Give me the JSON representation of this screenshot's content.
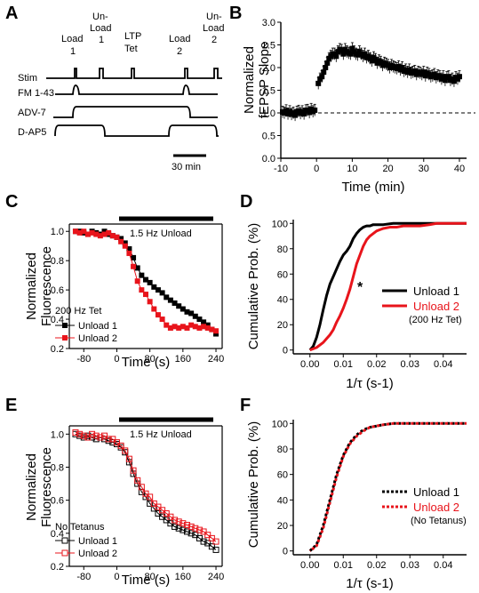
{
  "chart_data": [
    {
      "panel": "A",
      "type": "timeline",
      "events": [
        "Load 1",
        "Un-Load 1",
        "LTP Tet",
        "Load 2",
        "Un-Load 2"
      ],
      "rows": [
        "Stim",
        "FM 1-43",
        "ADV-7",
        "D-AP5"
      ],
      "scalebar_label": "30 min"
    },
    {
      "panel": "B",
      "type": "scatter",
      "xlabel": "Time (min)",
      "ylabel": [
        "Normalized",
        "fEPSP Slope"
      ],
      "xlim": [
        -10,
        42
      ],
      "ylim": [
        0,
        3
      ],
      "xticks": [
        -10,
        0,
        10,
        20,
        30,
        40
      ],
      "yticks": [
        0.0,
        0.5,
        1.0,
        1.5,
        2.0,
        2.5,
        3.0
      ],
      "baseline": 1.0,
      "x": [
        -9.5,
        -9,
        -8.5,
        -8,
        -7.5,
        -7,
        -6.5,
        -6,
        -5.5,
        -5,
        -4.5,
        -4,
        -3.5,
        -3,
        -2.5,
        -2,
        -1.5,
        -1,
        -0.5,
        0.5,
        1,
        1.5,
        2,
        2.5,
        3,
        3.5,
        4,
        4.5,
        5,
        5.5,
        6,
        6.5,
        7,
        7.5,
        8,
        8.5,
        9,
        9.5,
        10,
        10.5,
        11,
        11.5,
        12,
        12.5,
        13,
        13.5,
        14,
        14.5,
        15,
        15.5,
        16,
        16.5,
        17,
        17.5,
        18,
        18.5,
        19,
        19.5,
        20,
        20.5,
        21,
        21.5,
        22,
        22.5,
        23,
        23.5,
        24,
        24.5,
        25,
        25.5,
        26,
        26.5,
        27,
        27.5,
        28,
        28.5,
        29,
        29.5,
        30,
        30.5,
        31,
        31.5,
        32,
        32.5,
        33,
        33.5,
        34,
        34.5,
        35,
        35.5,
        36,
        36.5,
        37,
        37.5,
        38,
        38.5,
        39,
        39.5,
        40
      ],
      "y": [
        1.02,
        1.0,
        1.05,
        0.98,
        1.03,
        0.97,
        1.0,
        0.95,
        1.02,
        1.04,
        0.99,
        1.03,
        0.98,
        1.05,
        1.06,
        1.01,
        1.08,
        1.03,
        1.06,
        1.65,
        1.75,
        1.8,
        1.9,
        2.0,
        2.1,
        2.2,
        2.25,
        2.3,
        2.3,
        2.25,
        2.35,
        2.4,
        2.38,
        2.3,
        2.4,
        2.35,
        2.32,
        2.3,
        2.42,
        2.35,
        2.3,
        2.28,
        2.35,
        2.3,
        2.25,
        2.3,
        2.22,
        2.25,
        2.2,
        2.15,
        2.22,
        2.18,
        2.1,
        2.15,
        2.12,
        2.05,
        2.1,
        2.08,
        2.05,
        2.0,
        2.05,
        2.02,
        2.0,
        1.98,
        2.02,
        1.95,
        2.0,
        1.92,
        1.95,
        1.9,
        1.95,
        1.88,
        1.9,
        1.92,
        1.85,
        1.9,
        1.88,
        1.85,
        1.9,
        1.82,
        1.88,
        1.85,
        1.8,
        1.82,
        1.85,
        1.78,
        1.82,
        1.8,
        1.75,
        1.8,
        1.72,
        1.78,
        1.8,
        1.72,
        1.75,
        1.7,
        1.78,
        1.75,
        1.8
      ],
      "err": 0.13
    },
    {
      "panel": "C",
      "type": "line",
      "xlabel": "Time (s)",
      "ylabel": [
        "Normalized",
        "Fluorescence"
      ],
      "xlim": [
        -115,
        255
      ],
      "ylim": [
        0.2,
        1.05
      ],
      "xticks": [
        -80,
        0,
        80,
        160,
        240
      ],
      "yticks": [
        0.2,
        0.4,
        0.6,
        0.8,
        1.0
      ],
      "bar_label": "1.5 Hz Unload",
      "legend_title": "200 Hz Tet",
      "x": [
        -100,
        -90,
        -80,
        -70,
        -60,
        -50,
        -40,
        -30,
        -20,
        -10,
        0,
        10,
        20,
        30,
        40,
        50,
        60,
        70,
        80,
        90,
        100,
        110,
        120,
        130,
        140,
        150,
        160,
        170,
        180,
        190,
        200,
        210,
        220,
        230,
        240
      ],
      "series": [
        {
          "name": "Unload 1",
          "color": "#000000",
          "values": [
            1.0,
            1.0,
            0.99,
            0.98,
            1.0,
            0.99,
            0.98,
            1.0,
            0.98,
            0.97,
            0.96,
            0.95,
            0.92,
            0.88,
            0.82,
            0.75,
            0.7,
            0.67,
            0.65,
            0.62,
            0.6,
            0.58,
            0.55,
            0.53,
            0.51,
            0.49,
            0.47,
            0.45,
            0.44,
            0.42,
            0.4,
            0.38,
            0.36,
            0.33,
            0.3
          ]
        },
        {
          "name": "Unload 2",
          "color": "#e8141b",
          "values": [
            1.0,
            0.99,
            1.0,
            0.98,
            0.99,
            0.98,
            0.97,
            0.98,
            0.99,
            0.97,
            0.96,
            0.93,
            0.9,
            0.85,
            0.76,
            0.66,
            0.6,
            0.57,
            0.52,
            0.47,
            0.43,
            0.4,
            0.36,
            0.34,
            0.35,
            0.34,
            0.35,
            0.34,
            0.36,
            0.35,
            0.34,
            0.35,
            0.34,
            0.33,
            0.32
          ]
        }
      ]
    },
    {
      "panel": "D",
      "type": "line",
      "xlabel": "1/τ (s-1)",
      "ylabel": "Cumulative Prob. (%)",
      "xlim": [
        -0.005,
        0.047
      ],
      "ylim": [
        -3,
        103
      ],
      "xticks": [
        0.0,
        0.01,
        0.02,
        0.03,
        0.04
      ],
      "yticks": [
        0,
        20,
        40,
        60,
        80,
        100
      ],
      "annotation": "*",
      "series": [
        {
          "name": "Unload 1",
          "color": "#000000",
          "x": [
            0.0,
            0.001,
            0.002,
            0.003,
            0.004,
            0.005,
            0.006,
            0.007,
            0.008,
            0.009,
            0.01,
            0.011,
            0.012,
            0.013,
            0.014,
            0.015,
            0.016,
            0.017,
            0.018,
            0.019,
            0.02,
            0.022,
            0.025,
            0.03,
            0.047
          ],
          "values": [
            0,
            3,
            10,
            20,
            32,
            43,
            52,
            58,
            64,
            70,
            75,
            78,
            82,
            88,
            92,
            95,
            97,
            98,
            98,
            99,
            99,
            99,
            100,
            100,
            100
          ]
        },
        {
          "name": "Unload 2",
          "note": "(200 Hz Tet)",
          "color": "#e8141b",
          "x": [
            0.0,
            0.002,
            0.004,
            0.005,
            0.006,
            0.007,
            0.008,
            0.009,
            0.01,
            0.011,
            0.012,
            0.013,
            0.014,
            0.015,
            0.016,
            0.017,
            0.018,
            0.019,
            0.02,
            0.021,
            0.022,
            0.024,
            0.026,
            0.028,
            0.03,
            0.033,
            0.036,
            0.038,
            0.047
          ],
          "values": [
            0,
            2,
            6,
            9,
            12,
            16,
            22,
            27,
            33,
            40,
            48,
            58,
            68,
            75,
            82,
            87,
            90,
            92,
            94,
            95,
            96,
            97,
            97,
            98,
            98,
            98,
            99,
            100,
            100
          ]
        }
      ]
    },
    {
      "panel": "E",
      "type": "line",
      "xlabel": "Time (s)",
      "ylabel": [
        "Normalized",
        "Fluorescence"
      ],
      "xlim": [
        -115,
        255
      ],
      "ylim": [
        0.2,
        1.05
      ],
      "xticks": [
        -80,
        0,
        80,
        160,
        240
      ],
      "yticks": [
        0.2,
        0.4,
        0.6,
        0.8,
        1.0
      ],
      "bar_label": "1.5 Hz Unload",
      "legend_title": "No Tetanus",
      "x": [
        -100,
        -90,
        -80,
        -70,
        -60,
        -50,
        -40,
        -30,
        -20,
        -10,
        0,
        10,
        20,
        30,
        40,
        50,
        60,
        70,
        80,
        90,
        100,
        110,
        120,
        130,
        140,
        150,
        160,
        170,
        180,
        190,
        200,
        210,
        220,
        230,
        240
      ],
      "series": [
        {
          "name": "Unload 1",
          "color": "#000000",
          "values": [
            1.0,
            0.99,
            0.98,
            0.99,
            0.98,
            0.97,
            0.98,
            0.97,
            0.96,
            0.95,
            0.94,
            0.92,
            0.89,
            0.83,
            0.76,
            0.7,
            0.65,
            0.62,
            0.58,
            0.55,
            0.52,
            0.5,
            0.48,
            0.46,
            0.44,
            0.43,
            0.42,
            0.41,
            0.4,
            0.39,
            0.37,
            0.35,
            0.34,
            0.32,
            0.3
          ]
        },
        {
          "name": "Unload 2",
          "color": "#e8141b",
          "values": [
            1.01,
            1.0,
            0.99,
            0.98,
            1.0,
            0.99,
            0.98,
            0.99,
            0.97,
            0.97,
            0.95,
            0.93,
            0.9,
            0.85,
            0.78,
            0.72,
            0.68,
            0.64,
            0.62,
            0.58,
            0.56,
            0.54,
            0.52,
            0.5,
            0.48,
            0.47,
            0.46,
            0.45,
            0.44,
            0.43,
            0.42,
            0.41,
            0.39,
            0.37,
            0.35
          ]
        }
      ]
    },
    {
      "panel": "F",
      "type": "line",
      "xlabel": "1/τ (s-1)",
      "ylabel": "Cumulative Prob. (%)",
      "xlim": [
        -0.005,
        0.047
      ],
      "ylim": [
        -3,
        103
      ],
      "xticks": [
        0.0,
        0.01,
        0.02,
        0.03,
        0.04
      ],
      "yticks": [
        0,
        20,
        40,
        60,
        80,
        100
      ],
      "series": [
        {
          "name": "Unload 1",
          "color": "#000000",
          "x": [
            0.0,
            0.002,
            0.004,
            0.006,
            0.008,
            0.01,
            0.012,
            0.014,
            0.016,
            0.018,
            0.02,
            0.022,
            0.025,
            0.03,
            0.047
          ],
          "values": [
            0,
            5,
            20,
            40,
            60,
            75,
            85,
            91,
            95,
            97,
            98,
            99,
            100,
            100,
            100
          ]
        },
        {
          "name": "Unload 2",
          "note": "(No Tetanus)",
          "color": "#e8141b",
          "x": [
            0.0,
            0.002,
            0.004,
            0.006,
            0.008,
            0.01,
            0.012,
            0.014,
            0.016,
            0.018,
            0.02,
            0.022,
            0.025,
            0.03,
            0.047
          ],
          "values": [
            0,
            4,
            18,
            38,
            58,
            74,
            84,
            90,
            94,
            97,
            98,
            99,
            100,
            100,
            100
          ]
        }
      ]
    }
  ]
}
